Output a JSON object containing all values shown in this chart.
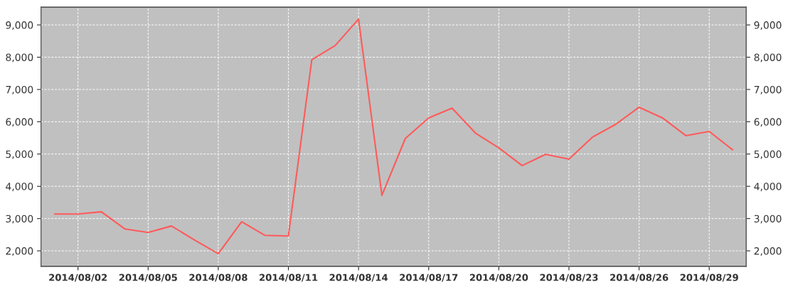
{
  "chart_data": {
    "type": "line",
    "x": [
      "2014-08-01",
      "2014-08-02",
      "2014-08-03",
      "2014-08-04",
      "2014-08-05",
      "2014-08-06",
      "2014-08-07",
      "2014-08-08",
      "2014-08-09",
      "2014-08-10",
      "2014-08-11",
      "2014-08-12",
      "2014-08-13",
      "2014-08-14",
      "2014-08-15",
      "2014-08-16",
      "2014-08-17",
      "2014-08-18",
      "2014-08-19",
      "2014-08-20",
      "2014-08-21",
      "2014-08-22",
      "2014-08-23",
      "2014-08-24",
      "2014-08-25",
      "2014-08-26",
      "2014-08-27",
      "2014-08-28",
      "2014-08-29",
      "2014-08-30"
    ],
    "series": [
      {
        "color": "#ff5a5a",
        "values": [
          3140,
          3140,
          3210,
          2680,
          2570,
          2770,
          2330,
          1910,
          2900,
          2480,
          2460,
          7920,
          8360,
          9180,
          3720,
          5480,
          6120,
          6420,
          5650,
          5190,
          4640,
          4990,
          4840,
          5520,
          5920,
          6450,
          6120,
          5570,
          5700,
          5130
        ]
      }
    ],
    "xlim": [
      "2014-07-31T10:00",
      "2014-08-30T14:00"
    ],
    "xticks": [
      {
        "value": "2014-08-02",
        "label": "2014/08/02"
      },
      {
        "value": "2014-08-05",
        "label": "2014/08/05"
      },
      {
        "value": "2014-08-08",
        "label": "2014/08/08"
      },
      {
        "value": "2014-08-11",
        "label": "2014/08/11"
      },
      {
        "value": "2014-08-14",
        "label": "2014/08/14"
      },
      {
        "value": "2014-08-17",
        "label": "2014/08/17"
      },
      {
        "value": "2014-08-20",
        "label": "2014/08/20"
      },
      {
        "value": "2014-08-23",
        "label": "2014/08/23"
      },
      {
        "value": "2014-08-26",
        "label": "2014/08/26"
      },
      {
        "value": "2014-08-29",
        "label": "2014/08/29"
      }
    ],
    "ylim": [
      1520,
      9550
    ],
    "yticks": [
      {
        "value": 2000,
        "label": "2,000"
      },
      {
        "value": 3000,
        "label": "3,000"
      },
      {
        "value": 4000,
        "label": "4,000"
      },
      {
        "value": 5000,
        "label": "5,000"
      },
      {
        "value": 6000,
        "label": "6,000"
      },
      {
        "value": 7000,
        "label": "7,000"
      },
      {
        "value": 8000,
        "label": "8,000"
      },
      {
        "value": 9000,
        "label": "9,000"
      }
    ],
    "y2lim": [
      1520,
      9550
    ],
    "y2ticks": [
      {
        "value": 2000,
        "label": "2,000"
      },
      {
        "value": 3000,
        "label": "3,000"
      },
      {
        "value": 4000,
        "label": "4,000"
      },
      {
        "value": 5000,
        "label": "5,000"
      },
      {
        "value": 6000,
        "label": "6,000"
      },
      {
        "value": 7000,
        "label": "7,000"
      },
      {
        "value": 8000,
        "label": "8,000"
      },
      {
        "value": 9000,
        "label": "9,000"
      }
    ],
    "grid": true
  }
}
